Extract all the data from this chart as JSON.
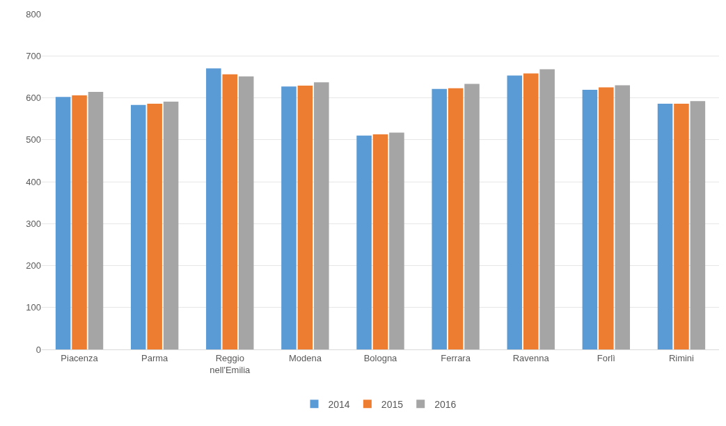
{
  "chart_data": {
    "type": "bar",
    "categories": [
      "Piacenza",
      "Parma",
      "Reggio nell'Emilia",
      "Modena",
      "Bologna",
      "Ferrara",
      "Ravenna",
      "Forlì",
      "Rimini"
    ],
    "series": [
      {
        "name": "2014",
        "color": "#5b9bd5",
        "values": [
          602,
          583,
          670,
          627,
          510,
          621,
          653,
          619,
          586
        ]
      },
      {
        "name": "2015",
        "color": "#ed7d31",
        "values": [
          606,
          586,
          656,
          629,
          513,
          623,
          658,
          625,
          586
        ]
      },
      {
        "name": "2016",
        "color": "#a5a5a5",
        "values": [
          614,
          591,
          651,
          637,
          517,
          633,
          668,
          630,
          592
        ]
      }
    ],
    "ylim": [
      0,
      800
    ],
    "yticks": [
      0,
      100,
      200,
      300,
      400,
      500,
      600,
      700,
      800
    ],
    "grid": "y",
    "legend": "bottom"
  }
}
